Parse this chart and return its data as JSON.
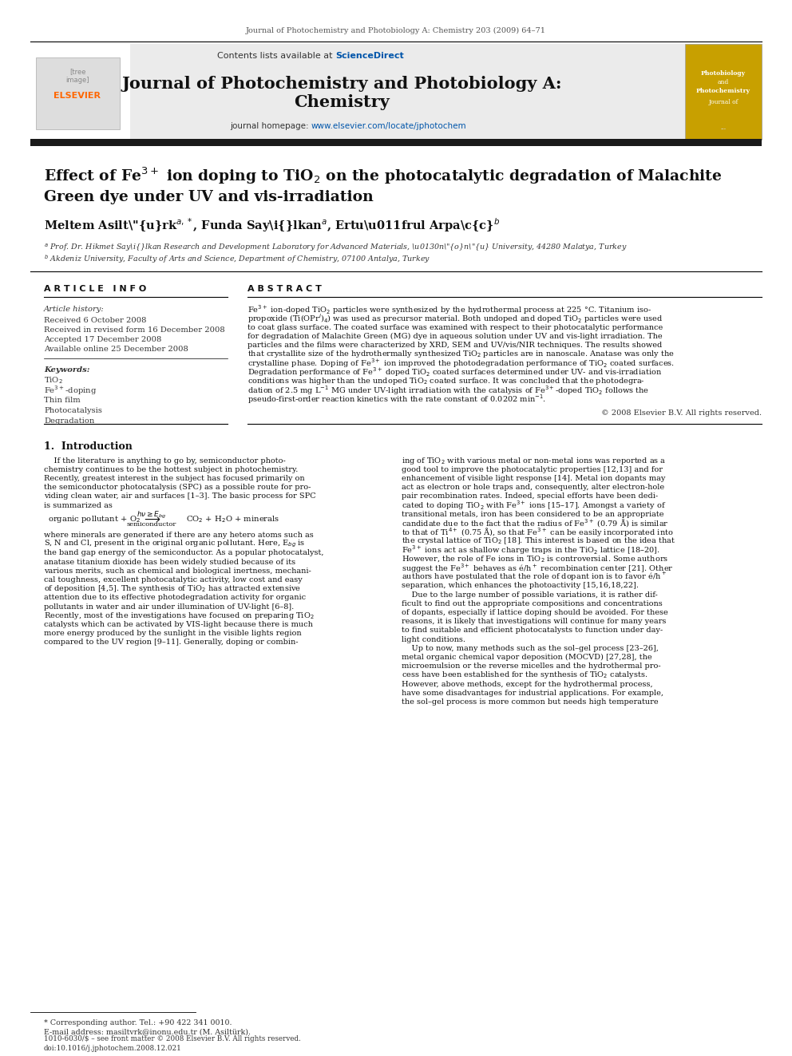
{
  "bg_color": "#ffffff",
  "page_header": "Journal of Photochemistry and Photobiology A: Chemistry 203 (2009) 64–71",
  "journal_title_line1": "Journal of Photochemistry and Photobiology A:",
  "journal_title_line2": "Chemistry",
  "header_bg": "#ebebeb",
  "article_info_header": "A R T I C L E   I N F O",
  "abstract_header": "A B S T R A C T",
  "article_history_label": "Article history:",
  "received_1": "Received 6 October 2008",
  "received_rev": "Received in revised form 16 December 2008",
  "accepted": "Accepted 17 December 2008",
  "available": "Available online 25 December 2008",
  "keywords_label": "Keywords:",
  "keywords": [
    "TiO$_2$",
    "Fe$^{3+}$-doping",
    "Thin film",
    "Photocatalysis",
    "Degradation"
  ],
  "copyright": "© 2008 Elsevier B.V. All rights reserved.",
  "intro_header": "1.  Introduction",
  "footnote_star": "* Corresponding author. Tel.: +90 422 341 0010.",
  "footnote_email": "E-mail address: masiltvrk@inonu.edu.tr (M. Asiltürk).",
  "footer_issn": "1010-6030/$ – see front matter © 2008 Elsevier B.V. All rights reserved.",
  "footer_doi": "doi:10.1016/j.jphotochem.2008.12.021",
  "abs_lines": [
    "Fe$^{3+}$ ion-doped TiO$_2$ particles were synthesized by the hydrothermal process at 225 °C. Titanium iso-",
    "propoxide (Ti(OPr$^i$)$_4$) was used as precursor material. Both undoped and doped TiO$_2$ particles were used",
    "to coat glass surface. The coated surface was examined with respect to their photocatalytic performance",
    "for degradation of Malachite Green (MG) dye in aqueous solution under UV and vis-light irradiation. The",
    "particles and the films were characterized by XRD, SEM and UV/vis/NIR techniques. The results showed",
    "that crystallite size of the hydrothermally synthesized TiO$_2$ particles are in nanoscale. Anatase was only the",
    "crystalline phase. Doping of Fe$^{3+}$ ion improved the photodegradation performance of TiO$_2$ coated surfaces.",
    "Degradation performance of Fe$^{3+}$ doped TiO$_2$ coated surfaces determined under UV- and vis-irradiation",
    "conditions was higher than the undoped TiO$_2$ coated surface. It was concluded that the photodegra-",
    "dation of 2.5 mg L$^{-1}$ MG under UV-light irradiation with the catalysis of Fe$^{3+}$-doped TiO$_2$ follows the",
    "pseudo-first-order reaction kinetics with the rate constant of 0.0202 min$^{-1}$."
  ],
  "intro_col1_lines": [
    "    If the literature is anything to go by, semiconductor photo-",
    "chemistry continues to be the hottest subject in photochemistry.",
    "Recently, greatest interest in the subject has focused primarily on",
    "the semiconductor photocatalysis (SPC) as a possible route for pro-",
    "viding clean water, air and surfaces [1–3]. The basic process for SPC",
    "is summarized as"
  ],
  "intro_col1_cont": [
    "where minerals are generated if there are any hetero atoms such as",
    "S, N and Cl, present in the original organic pollutant. Here, E$_{bg}$ is",
    "the band gap energy of the semiconductor. As a popular photocatalyst,",
    "anatase titanium dioxide has been widely studied because of its",
    "various merits, such as chemical and biological inertness, mechani-",
    "cal toughness, excellent photocatalytic activity, low cost and easy",
    "of deposition [4,5]. The synthesis of TiO$_2$ has attracted extensive",
    "attention due to its effective photodegradation activity for organic",
    "pollutants in water and air under illumination of UV-light [6–8].",
    "Recently, most of the investigations have focused on preparing TiO$_2$",
    "catalysts which can be activated by VIS-light because there is much",
    "more energy produced by the sunlight in the visible lights region",
    "compared to the UV region [9–11]. Generally, doping or combin-"
  ],
  "intro_col2_lines": [
    "ing of TiO$_2$ with various metal or non-metal ions was reported as a",
    "good tool to improve the photocatalytic properties [12,13] and for",
    "enhancement of visible light response [14]. Metal ion dopants may",
    "act as electron or hole traps and, consequently, alter electron-hole",
    "pair recombination rates. Indeed, special efforts have been dedi-",
    "cated to doping TiO$_2$ with Fe$^{3+}$ ions [15–17]. Amongst a variety of",
    "transitional metals, iron has been considered to be an appropriate",
    "candidate due to the fact that the radius of Fe$^{3+}$ (0.79 Å) is similar",
    "to that of Ti$^{4+}$ (0.75 Å), so that Fe$^{3+}$ can be easily incorporated into",
    "the crystal lattice of TiO$_2$ [18]. This interest is based on the idea that",
    "Fe$^{3+}$ ions act as shallow charge traps in the TiO$_2$ lattice [18–20].",
    "However, the role of Fe ions in TiO$_2$ is controversial. Some authors",
    "suggest the Fe$^{3+}$ behaves as é/h$^+$ recombination center [21]. Other",
    "authors have postulated that the role of dopant ion is to favor é/h$^+$",
    "separation, which enhances the photoactivity [15,16,18,22].",
    "    Due to the large number of possible variations, it is rather dif-",
    "ficult to find out the appropriate compositions and concentrations",
    "of dopants, especially if lattice doping should be avoided. For these",
    "reasons, it is likely that investigations will continue for many years",
    "to find suitable and efficient photocatalysts to function under day-",
    "light conditions.",
    "    Up to now, many methods such as the sol–gel process [23–26],",
    "metal organic chemical vapor deposition (MOCVD) [27,28], the",
    "microemulsion or the reverse micelles and the hydrothermal pro-",
    "cess have been established for the synthesis of TiO$_2$ catalysts.",
    "However, above methods, except for the hydrothermal process,",
    "have some disadvantages for industrial applications. For example,",
    "the sol–gel process is more common but needs high temperature"
  ]
}
